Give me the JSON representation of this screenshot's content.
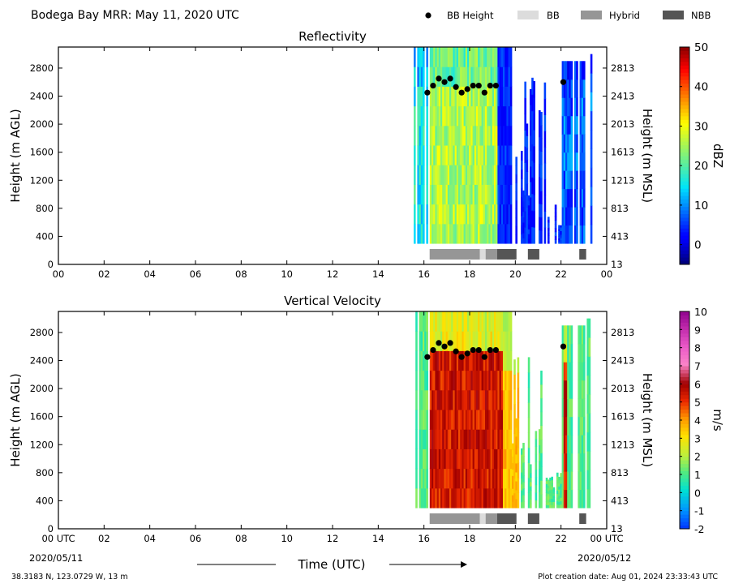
{
  "header": {
    "title": "Bodega Bay MRR:  May 11, 2020 UTC",
    "legend": [
      {
        "label": "BB Height",
        "color": "#000000",
        "kind": "dot"
      },
      {
        "label": "BB",
        "color": "#dcdcdc",
        "kind": "box"
      },
      {
        "label": "Hybrid",
        "color": "#969696",
        "kind": "box"
      },
      {
        "label": "NBB",
        "color": "#555555",
        "kind": "box"
      }
    ]
  },
  "footer": {
    "xlabel": "Time (UTC)",
    "start_date": "2020/05/11",
    "end_date": "2020/05/12",
    "location": "38.3183 N, 123.0729 W, 13 m",
    "creation": "Plot creation date: Aug 01, 2024 23:33:43 UTC"
  },
  "chart_data": [
    {
      "type": "heatmap",
      "title": "Reflectivity",
      "ylabel": "Height (m AGL)",
      "ylabel_right": "Height (m MSL)",
      "xlim": [
        0,
        24
      ],
      "ylim": [
        0,
        3100
      ],
      "x_ticks": [
        "00",
        "02",
        "04",
        "06",
        "08",
        "10",
        "12",
        "14",
        "16",
        "18",
        "20",
        "22",
        "00"
      ],
      "y_ticks": [
        0,
        400,
        800,
        1200,
        1600,
        2000,
        2400,
        2800
      ],
      "y_ticks_right": [
        13,
        413,
        813,
        1213,
        1613,
        2013,
        2413,
        2813
      ],
      "colorbar": {
        "label": "dBZ",
        "min": -5,
        "max": 50,
        "ticks": [
          0,
          10,
          20,
          30,
          40,
          50
        ]
      },
      "bb_height": [
        [
          16.15,
          2450
        ],
        [
          16.4,
          2550
        ],
        [
          16.65,
          2650
        ],
        [
          16.9,
          2600
        ],
        [
          17.15,
          2650
        ],
        [
          17.4,
          2530
        ],
        [
          17.65,
          2450
        ],
        [
          17.9,
          2500
        ],
        [
          18.15,
          2550
        ],
        [
          18.4,
          2550
        ],
        [
          18.65,
          2450
        ],
        [
          18.9,
          2550
        ],
        [
          19.15,
          2550
        ],
        [
          22.1,
          2600
        ]
      ],
      "band_types": [
        [
          16.25,
          18.45,
          "Hybrid"
        ],
        [
          18.45,
          18.7,
          "BB"
        ],
        [
          18.7,
          19.2,
          "Hybrid"
        ],
        [
          19.2,
          20.05,
          "NBB"
        ],
        [
          20.55,
          21.05,
          "NBB"
        ],
        [
          22.8,
          23.1,
          "NBB"
        ]
      ]
    },
    {
      "type": "heatmap",
      "title": "Vertical Velocity",
      "ylabel": "Height (m AGL)",
      "ylabel_right": "Height (m MSL)",
      "xlim": [
        0,
        24
      ],
      "ylim": [
        0,
        3100
      ],
      "x_ticks": [
        "00 UTC",
        "02",
        "04",
        "06",
        "08",
        "10",
        "12",
        "14",
        "16",
        "18",
        "20",
        "22",
        "00 UTC"
      ],
      "y_ticks": [
        0,
        400,
        800,
        1200,
        1600,
        2000,
        2400,
        2800
      ],
      "y_ticks_right": [
        13,
        413,
        813,
        1213,
        1613,
        2013,
        2413,
        2813
      ],
      "colorbar": {
        "label": "m/s",
        "min": -2,
        "max": 10,
        "ticks": [
          -2,
          -1,
          0,
          1,
          2,
          3,
          4,
          5,
          6,
          7,
          8,
          9,
          10
        ]
      },
      "bb_height": [
        [
          16.15,
          2450
        ],
        [
          16.4,
          2550
        ],
        [
          16.65,
          2650
        ],
        [
          16.9,
          2600
        ],
        [
          17.15,
          2650
        ],
        [
          17.4,
          2530
        ],
        [
          17.65,
          2450
        ],
        [
          17.9,
          2500
        ],
        [
          18.15,
          2550
        ],
        [
          18.4,
          2550
        ],
        [
          18.65,
          2450
        ],
        [
          18.9,
          2550
        ],
        [
          19.15,
          2550
        ],
        [
          22.1,
          2600
        ]
      ],
      "band_types": [
        [
          16.25,
          18.45,
          "Hybrid"
        ],
        [
          18.45,
          18.7,
          "BB"
        ],
        [
          18.7,
          19.2,
          "Hybrid"
        ],
        [
          19.2,
          20.05,
          "NBB"
        ],
        [
          20.55,
          21.05,
          "NBB"
        ],
        [
          22.8,
          23.1,
          "NBB"
        ]
      ]
    }
  ]
}
